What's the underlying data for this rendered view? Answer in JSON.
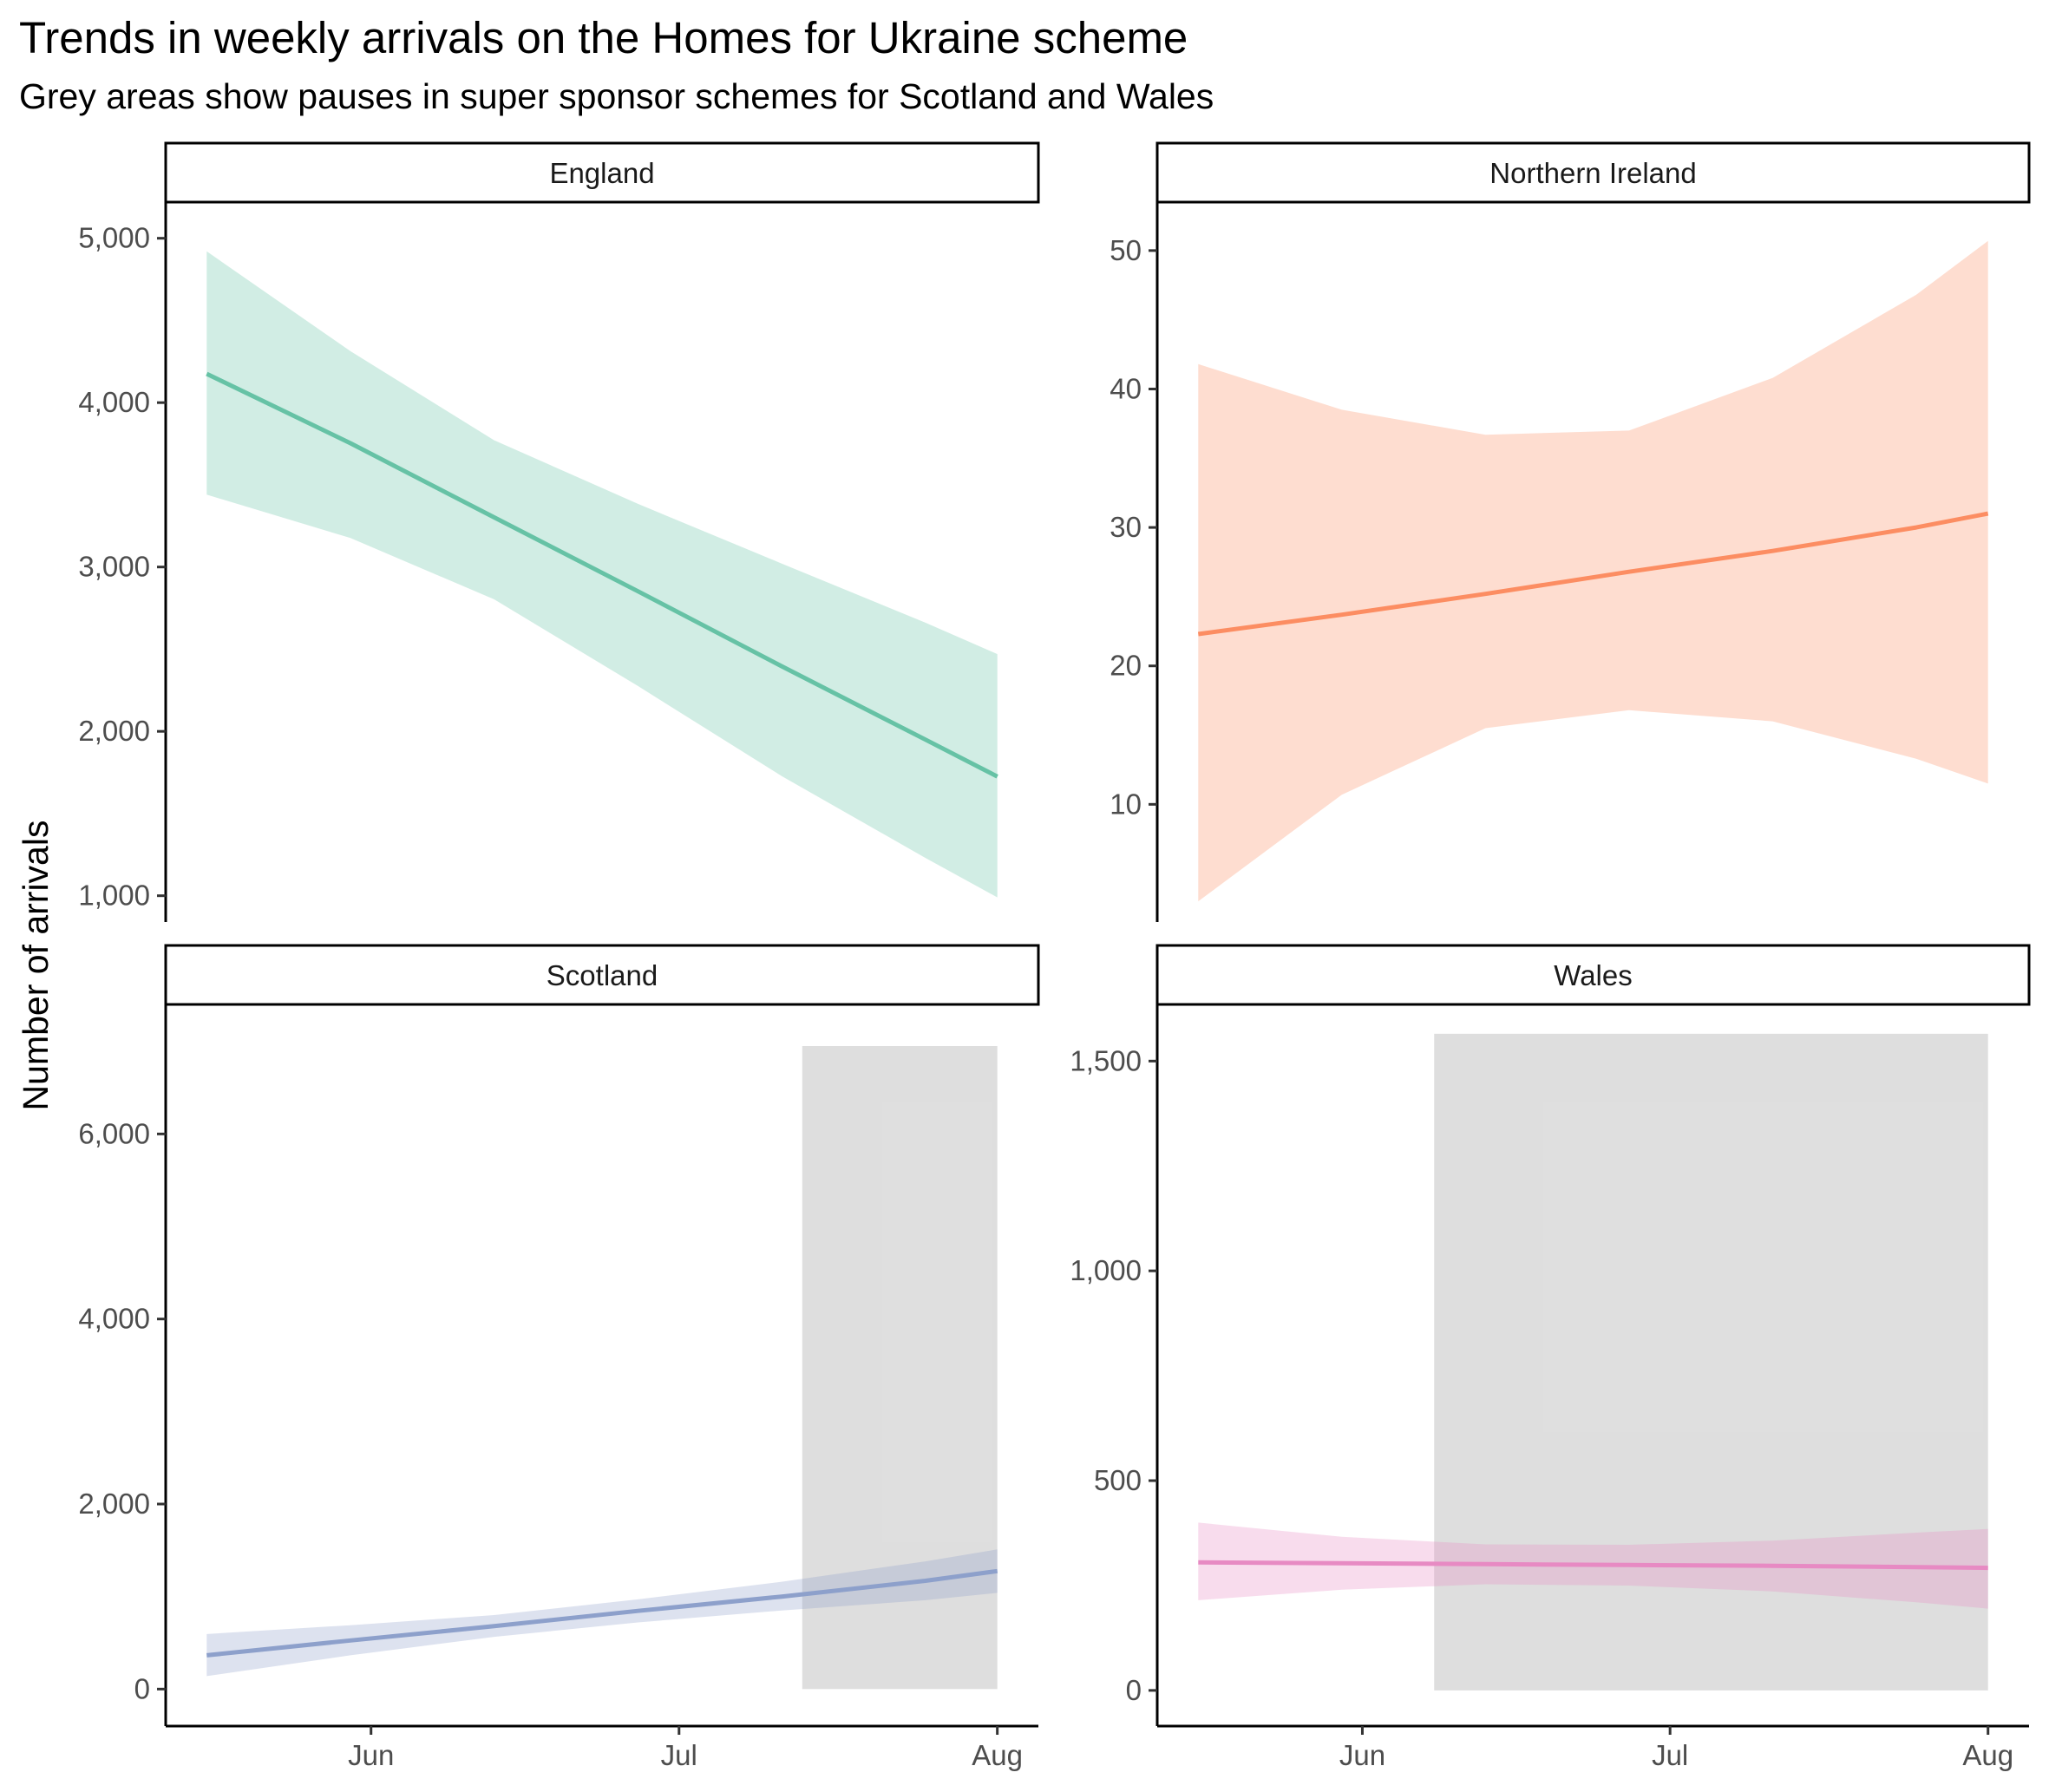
{
  "title": "Trends in weekly arrivals on the Homes for Ukraine scheme",
  "subtitle": "Grey areas show pauses in super sponsor schemes for Scotland and Wales",
  "chart_data": {
    "type": "line",
    "ylabel": "Number of arrivals",
    "xlabel": "",
    "grid": false,
    "x_ticks": [
      {
        "label": "Jun",
        "date": "2022-06-01"
      },
      {
        "label": "Jul",
        "date": "2022-07-01"
      },
      {
        "label": "Aug",
        "date": "2022-08-01"
      }
    ],
    "x_range": [
      "2022-05-12",
      "2022-08-05"
    ],
    "panels": [
      {
        "name": "England",
        "color": "#66c2a5",
        "ylim": [
          840,
          5220
        ],
        "y_ticks": [
          1000,
          2000,
          3000,
          4000,
          5000
        ],
        "y_tick_labels": [
          "1,000",
          "2,000",
          "3,000",
          "4,000",
          "5,000"
        ],
        "x": [
          "2022-05-16",
          "2022-05-30",
          "2022-06-13",
          "2022-06-27",
          "2022-07-11",
          "2022-07-25",
          "2022-08-01"
        ],
        "fit": [
          4175,
          3753,
          3302,
          2852,
          2396,
          1950,
          1725
        ],
        "lower": [
          3440,
          3176,
          2803,
          2276,
          1728,
          1230,
          990
        ],
        "upper": [
          4920,
          4313,
          3771,
          3384,
          3021,
          2661,
          2470
        ],
        "pause": null
      },
      {
        "name": "Northern Ireland",
        "color": "#fc8d62",
        "ylim": [
          1.5,
          53.5
        ],
        "y_ticks": [
          10,
          20,
          30,
          40,
          50
        ],
        "y_tick_labels": [
          "10",
          "20",
          "30",
          "40",
          "50"
        ],
        "x": [
          "2022-05-16",
          "2022-05-30",
          "2022-06-13",
          "2022-06-27",
          "2022-07-11",
          "2022-07-25",
          "2022-08-01"
        ],
        "fit": [
          22.3,
          23.7,
          25.2,
          26.8,
          28.3,
          30.0,
          31.0
        ],
        "lower": [
          3.0,
          10.7,
          15.5,
          16.8,
          16.0,
          13.3,
          11.5
        ],
        "upper": [
          41.8,
          38.5,
          36.7,
          37.0,
          40.8,
          46.8,
          50.7
        ],
        "pause": null
      },
      {
        "name": "Scotland",
        "color": "#8da0cb",
        "ylim": [
          -400,
          7400
        ],
        "y_ticks": [
          0,
          2000,
          4000,
          6000
        ],
        "y_tick_labels": [
          "0",
          "2,000",
          "4,000",
          "6,000"
        ],
        "x": [
          "2022-05-16",
          "2022-05-30",
          "2022-06-13",
          "2022-06-27",
          "2022-07-11",
          "2022-07-25",
          "2022-08-01"
        ],
        "fit": [
          365,
          525,
          680,
          845,
          1000,
          1170,
          1275
        ],
        "lower": [
          140,
          365,
          565,
          720,
          850,
          960,
          1040
        ],
        "upper": [
          595,
          690,
          800,
          970,
          1160,
          1380,
          1510
        ],
        "pause": {
          "start": "2022-07-13",
          "end": "2022-08-01",
          "ymax": 6950
        }
      },
      {
        "name": "Wales",
        "color": "#e78ac3",
        "ylim": [
          -85,
          1635
        ],
        "y_ticks": [
          0,
          500,
          1000,
          1500
        ],
        "y_tick_labels": [
          "0",
          "500",
          "1,000",
          "1,500"
        ],
        "x": [
          "2022-05-16",
          "2022-05-30",
          "2022-06-13",
          "2022-06-27",
          "2022-07-11",
          "2022-07-25",
          "2022-08-01"
        ],
        "fit": [
          305,
          303,
          301,
          299,
          297,
          294,
          292
        ],
        "lower": [
          215,
          240,
          253,
          250,
          236,
          210,
          195
        ],
        "upper": [
          400,
          366,
          348,
          347,
          357,
          376,
          385
        ],
        "pause": {
          "start": "2022-06-08",
          "end": "2022-08-01",
          "ymax": 1565
        }
      }
    ]
  }
}
